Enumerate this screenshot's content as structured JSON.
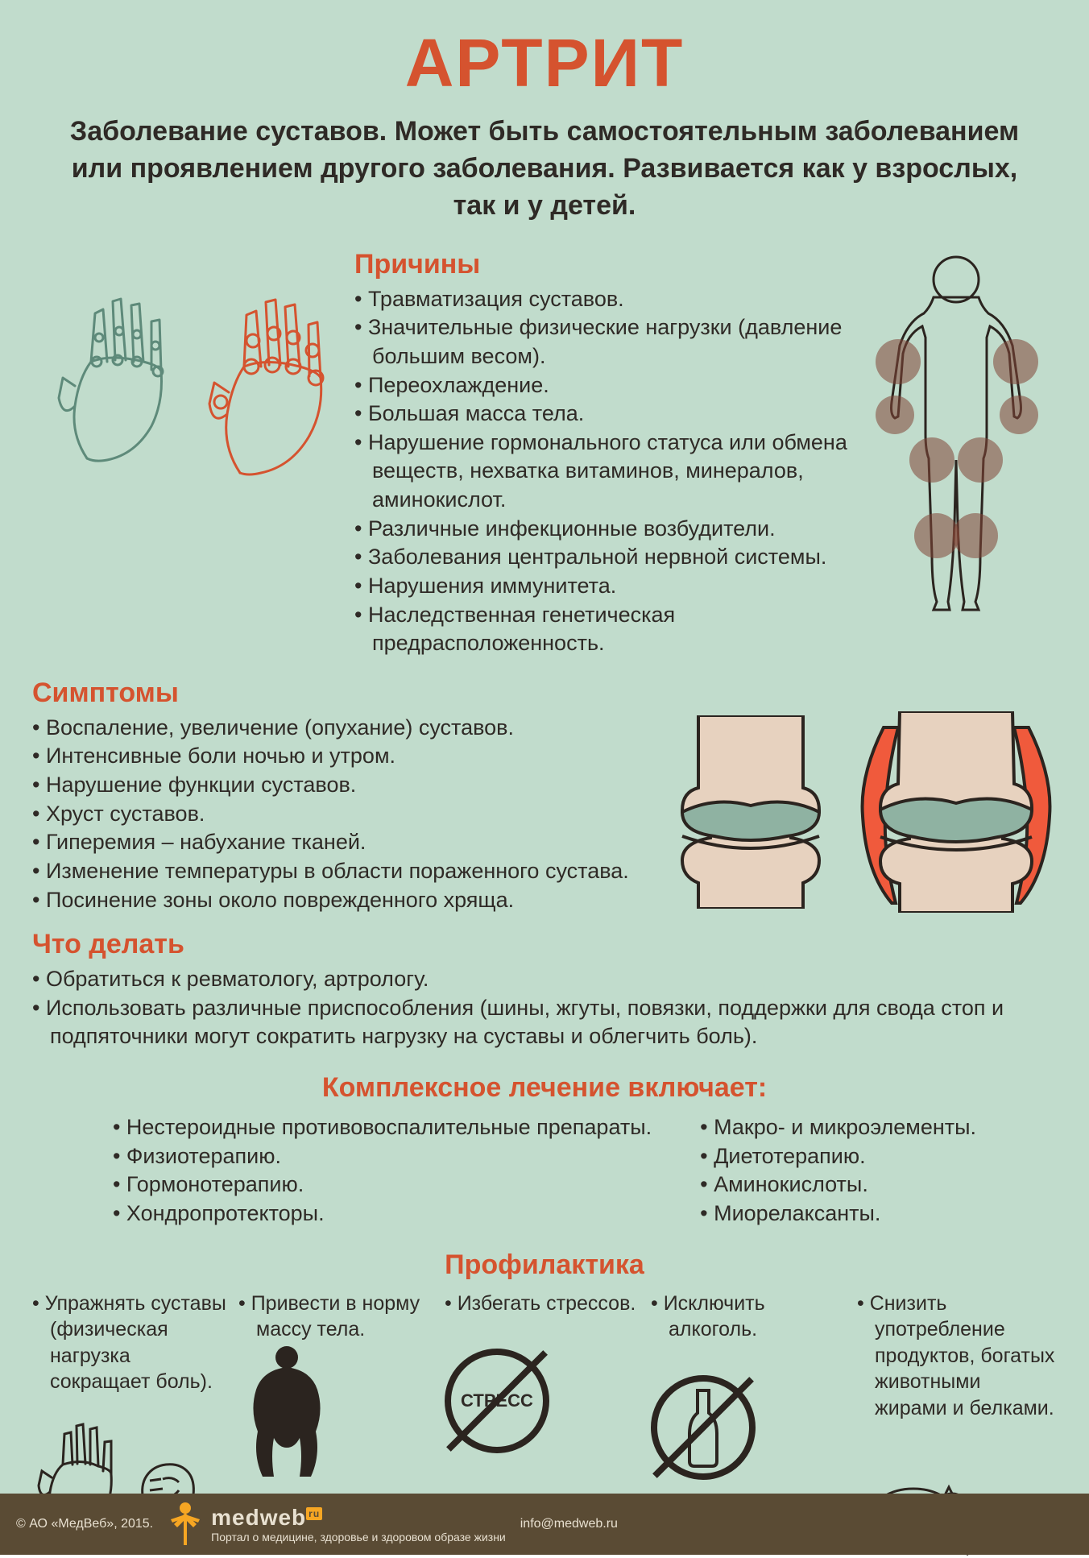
{
  "colors": {
    "page_bg": "#c1dccc",
    "title": "#d5532f",
    "text": "#2f2a26",
    "heading": "#d5532f",
    "footer_bg": "#5a4b34",
    "footer_text": "#e8e0d0",
    "brand_accent": "#f6a623",
    "joint_fill_outer": "#e7d2bf",
    "joint_fill_inner": "#8fb2a2",
    "joint_inflamed": "#f05a3c",
    "stroke": "#2b241f",
    "hand_normal_stroke": "#5e8a7a",
    "hand_inflamed_stroke": "#d5532f",
    "body_joint_dot": "rgba(130,70,55,0.55)",
    "no_circle_stroke": "#2b241f"
  },
  "title": "АРТРИТ",
  "subtitle": "Заболевание суставов. Может быть самостоятельным заболеванием или проявлением другого заболевания. Развивается как у взрослых, так и у детей.",
  "causes": {
    "heading": "Причины",
    "items": [
      "Травматизация суставов.",
      "Значительные физические нагрузки (давление большим весом).",
      "Переохлаждение.",
      "Большая масса тела.",
      "Нарушение гормонального статуса или обмена веществ, нехватка витаминов, минералов, аминокислот.",
      "Различные инфекционные возбудители.",
      "Заболевания центральной нервной системы.",
      "Нарушения иммунитета.",
      "Наследственная генетическая предрасположенность."
    ]
  },
  "symptoms": {
    "heading": "Симптомы",
    "items": [
      "Воспаление, увеличение (опухание) суставов.",
      "Интенсивные боли ночью и утром.",
      "Нарушение функции суставов.",
      "Хруст суставов.",
      "Гиперемия – набухание тканей.",
      "Изменение температуры в области пораженного сустава.",
      "Посинение зоны около поврежденного хряща."
    ]
  },
  "actions": {
    "heading": "Что делать",
    "items": [
      "Обратиться к ревматологу, артрологу.",
      "Использовать различные приспособления (шины, жгуты, повязки, поддержки для свода стоп и подпяточники могут сократить нагрузку на суставы и облегчить боль)."
    ]
  },
  "treatment": {
    "heading": "Комплексное лечение включает:",
    "col1": [
      "Нестероидные противовоспалительные препараты.",
      "Физиотерапию.",
      "Гормонотерапию.",
      "Хондропротекторы."
    ],
    "col2": [
      "Макро- и микроэлементы.",
      "Диетотерапию.",
      "Аминокислоты.",
      "Миорелаксанты."
    ]
  },
  "prevention": {
    "heading": "Профилактика",
    "cards": [
      {
        "text": "Упражнять суставы (физическая нагрузка сокращает боль).",
        "icon": "hand-fist"
      },
      {
        "text": "Привести в норму массу тела.",
        "icon": "body-fat"
      },
      {
        "text": "Избегать стрессов.",
        "icon": "no-stress",
        "label": "СТРЕСС"
      },
      {
        "text": "Исключить алкоголь.",
        "icon": "no-alcohol"
      },
      {
        "text": "Снизить употребление продуктов, богатых животными жирами и белками.",
        "icon": "pigs"
      }
    ]
  },
  "footer": {
    "copyright": "© АО «МедВеб», 2015.",
    "brand": "medweb",
    "brand_suffix": "ru",
    "tagline": "Портал о медицине, здоровье и здоровом образе жизни",
    "email": "info@medweb.ru"
  }
}
